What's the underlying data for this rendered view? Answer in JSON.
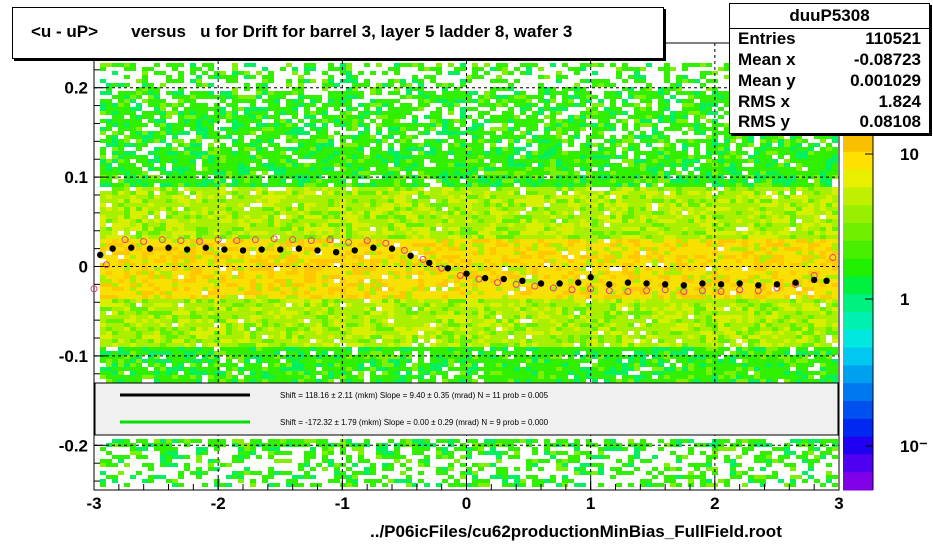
{
  "title": "<u - uP>       versus   u for Drift for barrel 3, layer 5 ladder 8, wafer 3",
  "footer": "../P06icFiles/cu62productionMinBias_FullField.root",
  "stats": {
    "name": "duuP5308",
    "rows": [
      {
        "label": "Entries",
        "value": "110521"
      },
      {
        "label": "Mean x",
        "value": "-0.08723"
      },
      {
        "label": "Mean y",
        "value": "0.001029"
      },
      {
        "label": "RMS x",
        "value": "1.824"
      },
      {
        "label": "RMS y",
        "value": "0.08108"
      }
    ]
  },
  "colorbar": {
    "labels": [
      "10",
      "1",
      "10⁻"
    ],
    "colors": [
      "#f8c000",
      "#ffe000",
      "#e8f000",
      "#c0f000",
      "#98f000",
      "#70f000",
      "#48f000",
      "#20f000",
      "#00f040",
      "#00f080",
      "#00f0b0",
      "#00e8e0",
      "#00c8f0",
      "#00a0f0",
      "#0078f0",
      "#0050f0",
      "#0028f0",
      "#2000f0",
      "#5000f0",
      "#8000e8"
    ]
  },
  "chart_data": {
    "type": "scatter",
    "xlim": [
      -3,
      3
    ],
    "ylim": [
      -0.25,
      0.25
    ],
    "x_ticks": [
      -3,
      -2,
      -1,
      0,
      1,
      2,
      3
    ],
    "x_tick_labels": [
      "-3",
      "-2",
      "-1",
      "0",
      "1",
      "2",
      "3"
    ],
    "y_ticks": [
      -0.2,
      -0.1,
      0,
      0.1,
      0.2
    ],
    "y_tick_labels": [
      "-0.2",
      "-0.1",
      "0",
      "0.1",
      "0.2"
    ],
    "grid": true,
    "series": [
      {
        "marker": "filled-circle",
        "color": "#000000",
        "x": [
          -2.95,
          -2.85,
          -2.7,
          -2.55,
          -2.4,
          -2.25,
          -2.1,
          -1.95,
          -1.8,
          -1.65,
          -1.5,
          -1.35,
          -1.2,
          -1.05,
          -0.9,
          -0.75,
          -0.6,
          -0.45,
          -0.3,
          -0.15,
          0.0,
          0.15,
          0.3,
          0.45,
          0.6,
          0.75,
          0.9,
          1.0,
          1.15,
          1.3,
          1.45,
          1.6,
          1.75,
          1.9,
          2.05,
          2.2,
          2.35,
          2.5,
          2.65,
          2.8,
          2.9
        ],
        "y": [
          0.013,
          0.02,
          0.021,
          0.02,
          0.021,
          0.019,
          0.021,
          0.019,
          0.018,
          0.019,
          0.019,
          0.02,
          0.018,
          0.016,
          0.018,
          0.021,
          0.02,
          0.012,
          0.004,
          -0.002,
          -0.008,
          -0.013,
          -0.014,
          -0.016,
          -0.019,
          -0.019,
          -0.018,
          -0.012,
          -0.02,
          -0.018,
          -0.019,
          -0.02,
          -0.021,
          -0.019,
          -0.02,
          -0.019,
          -0.021,
          -0.02,
          -0.018,
          -0.015,
          -0.016
        ]
      },
      {
        "marker": "open-circle",
        "color": "#e04080",
        "x": [
          -3.0,
          -2.9,
          -2.75,
          -2.6,
          -2.45,
          -2.3,
          -2.15,
          -2.0,
          -1.85,
          -1.7,
          -1.55,
          -1.4,
          -1.25,
          -1.1,
          -0.95,
          -0.8,
          -0.65,
          -0.5,
          -0.35,
          -0.2,
          -0.05,
          0.1,
          0.25,
          0.4,
          0.55,
          0.7,
          0.85,
          1.0,
          1.15,
          1.3,
          1.45,
          1.6,
          1.75,
          1.9,
          2.05,
          2.2,
          2.35,
          2.5,
          2.65,
          2.8,
          2.95
        ],
        "y": [
          -0.025,
          0.002,
          0.03,
          0.028,
          0.03,
          0.029,
          0.028,
          0.03,
          0.029,
          0.03,
          0.031,
          0.03,
          0.029,
          0.03,
          0.027,
          0.029,
          0.026,
          0.018,
          0.008,
          -0.002,
          -0.01,
          -0.014,
          -0.018,
          -0.02,
          -0.022,
          -0.024,
          -0.026,
          -0.025,
          -0.027,
          -0.028,
          -0.027,
          -0.026,
          -0.028,
          -0.027,
          -0.028,
          -0.026,
          -0.027,
          -0.024,
          -0.02,
          -0.01,
          0.01
        ]
      }
    ],
    "fits": [
      {
        "color": "#000000",
        "text": "Shift =   118.16 ± 2.11 (mkm) Slope =     9.40 ± 0.35 (mrad)  N = 11 prob = 0.005"
      },
      {
        "color": "#00dd00",
        "text": "Shift =  -172.32 ± 1.79 (mkm) Slope =     0.00 ± 0.29 (mrad)  N = 9 prob = 0.000"
      }
    ]
  }
}
